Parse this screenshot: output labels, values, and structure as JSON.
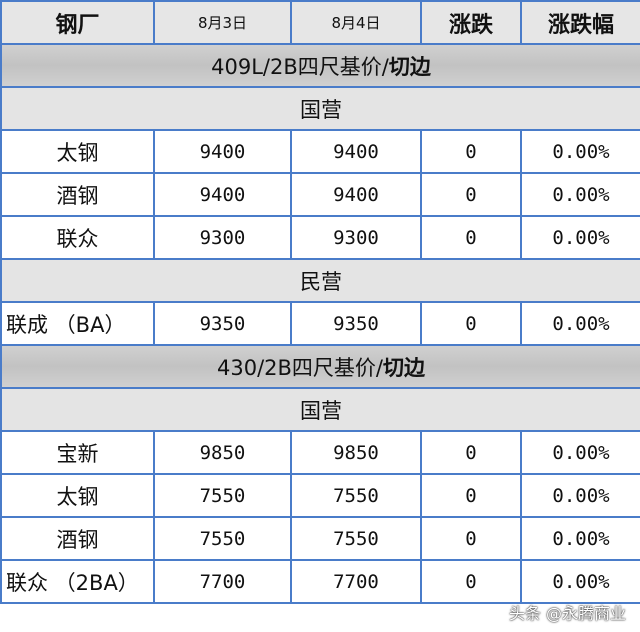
{
  "header": {
    "mill": "钢厂",
    "d1": "8月3日",
    "d2": "8月4日",
    "change": "涨跌",
    "pct": "涨跌幅"
  },
  "sections": [
    {
      "title_a": "409L/2B四尺基价/",
      "title_b": "切边"
    },
    {
      "title_a": "430/2B四尺基价/",
      "title_b": "切边"
    }
  ],
  "groups": {
    "state": "国营",
    "private": "民营"
  },
  "rows": [
    {
      "mill": "太钢",
      "d1": "9400",
      "d2": "9400",
      "change": "0",
      "pct": "0.00%"
    },
    {
      "mill": "酒钢",
      "d1": "9400",
      "d2": "9400",
      "change": "0",
      "pct": "0.00%"
    },
    {
      "mill": "联众",
      "d1": "9300",
      "d2": "9300",
      "change": "0",
      "pct": "0.00%"
    },
    {
      "mill": "联成 （BA）",
      "d1": "9350",
      "d2": "9350",
      "change": "0",
      "pct": "0.00%"
    },
    {
      "mill": "宝新",
      "d1": "9850",
      "d2": "9850",
      "change": "0",
      "pct": "0.00%"
    },
    {
      "mill": "太钢",
      "d1": "7550",
      "d2": "7550",
      "change": "0",
      "pct": "0.00%"
    },
    {
      "mill": "酒钢",
      "d1": "7550",
      "d2": "7550",
      "change": "0",
      "pct": "0.00%"
    },
    {
      "mill": "联众 （2BA）",
      "d1": "7700",
      "d2": "7700",
      "change": "0",
      "pct": "0.00%"
    }
  ],
  "watermark": "头条 @永腾商业"
}
